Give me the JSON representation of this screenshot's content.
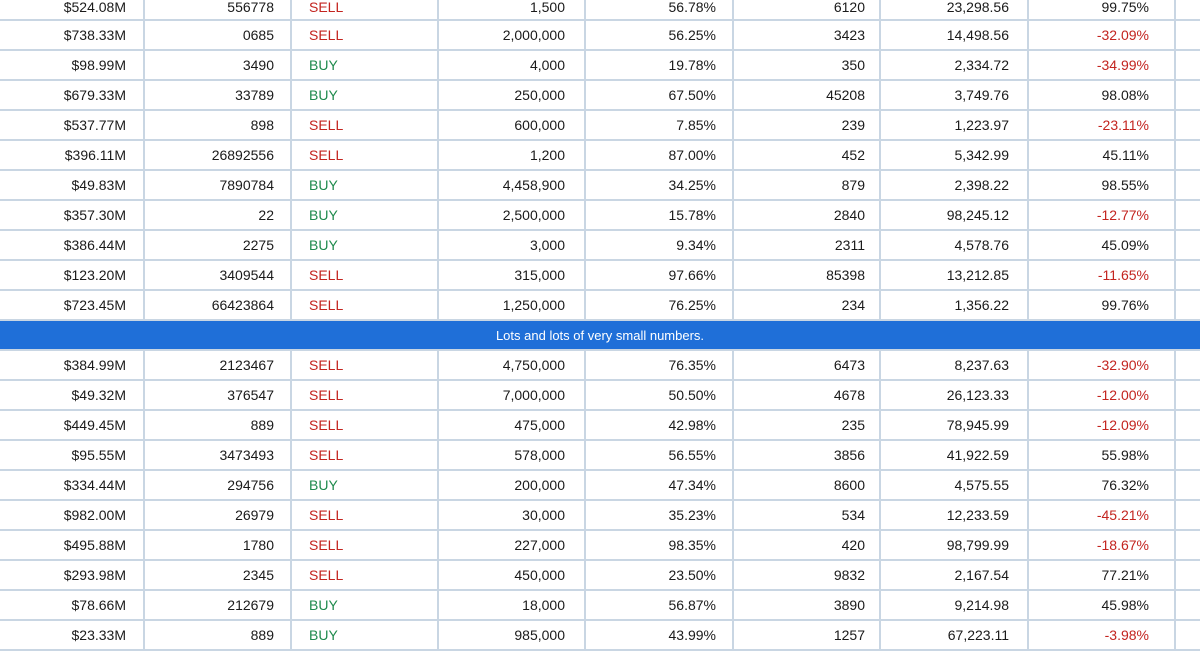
{
  "colors": {
    "sell": "#c3241f",
    "buy": "#1e8a4c",
    "negative": "#c3241f",
    "banner_bg": "#1f6fd8",
    "grid_line": "#c9d6e3"
  },
  "sections": [
    {
      "rows": [
        [
          "$524.08M",
          "556778",
          "SELL",
          "1,500",
          "56.78%",
          "6120",
          "23,298.56",
          "99.75%"
        ],
        [
          "$738.33M",
          "0685",
          "SELL",
          "2,000,000",
          "56.25%",
          "3423",
          "14,498.56",
          "-32.09%"
        ],
        [
          "$98.99M",
          "3490",
          "BUY",
          "4,000",
          "19.78%",
          "350",
          "2,334.72",
          "-34.99%"
        ],
        [
          "$679.33M",
          "33789",
          "BUY",
          "250,000",
          "67.50%",
          "45208",
          "3,749.76",
          "98.08%"
        ],
        [
          "$537.77M",
          "898",
          "SELL",
          "600,000",
          "7.85%",
          "239",
          "1,223.97",
          "-23.11%"
        ],
        [
          "$396.11M",
          "26892556",
          "SELL",
          "1,200",
          "87.00%",
          "452",
          "5,342.99",
          "45.11%"
        ],
        [
          "$49.83M",
          "7890784",
          "BUY",
          "4,458,900",
          "34.25%",
          "879",
          "2,398.22",
          "98.55%"
        ],
        [
          "$357.30M",
          "22",
          "BUY",
          "2,500,000",
          "15.78%",
          "2840",
          "98,245.12",
          "-12.77%"
        ],
        [
          "$386.44M",
          "2275",
          "BUY",
          "3,000",
          "9.34%",
          "2311",
          "4,578.76",
          "45.09%"
        ],
        [
          "$123.20M",
          "3409544",
          "SELL",
          "315,000",
          "97.66%",
          "85398",
          "13,212.85",
          "-11.65%"
        ],
        [
          "$723.45M",
          "66423864",
          "SELL",
          "1,250,000",
          "76.25%",
          "234",
          "1,356.22",
          "99.76%"
        ]
      ]
    },
    {
      "banner": "Lots and lots of very small numbers.",
      "rows": [
        [
          "$384.99M",
          "2123467",
          "SELL",
          "4,750,000",
          "76.35%",
          "6473",
          "8,237.63",
          "-32.90%"
        ],
        [
          "$49.32M",
          "376547",
          "SELL",
          "7,000,000",
          "50.50%",
          "4678",
          "26,123.33",
          "-12.00%"
        ],
        [
          "$449.45M",
          "889",
          "SELL",
          "475,000",
          "42.98%",
          "235",
          "78,945.99",
          "-12.09%"
        ],
        [
          "$95.55M",
          "3473493",
          "SELL",
          "578,000",
          "56.55%",
          "3856",
          "41,922.59",
          "55.98%"
        ],
        [
          "$334.44M",
          "294756",
          "BUY",
          "200,000",
          "47.34%",
          "8600",
          "4,575.55",
          "76.32%"
        ],
        [
          "$982.00M",
          "26979",
          "SELL",
          "30,000",
          "35.23%",
          "534",
          "12,233.59",
          "-45.21%"
        ],
        [
          "$495.88M",
          "1780",
          "SELL",
          "227,000",
          "98.35%",
          "420",
          "98,799.99",
          "-18.67%"
        ],
        [
          "$293.98M",
          "2345",
          "SELL",
          "450,000",
          "23.50%",
          "9832",
          "2,167.54",
          "77.21%"
        ],
        [
          "$78.66M",
          "212679",
          "BUY",
          "18,000",
          "56.87%",
          "3890",
          "9,214.98",
          "45.98%"
        ],
        [
          "$23.33M",
          "889",
          "BUY",
          "985,000",
          "43.99%",
          "1257",
          "67,223.11",
          "-3.98%"
        ]
      ]
    }
  ]
}
